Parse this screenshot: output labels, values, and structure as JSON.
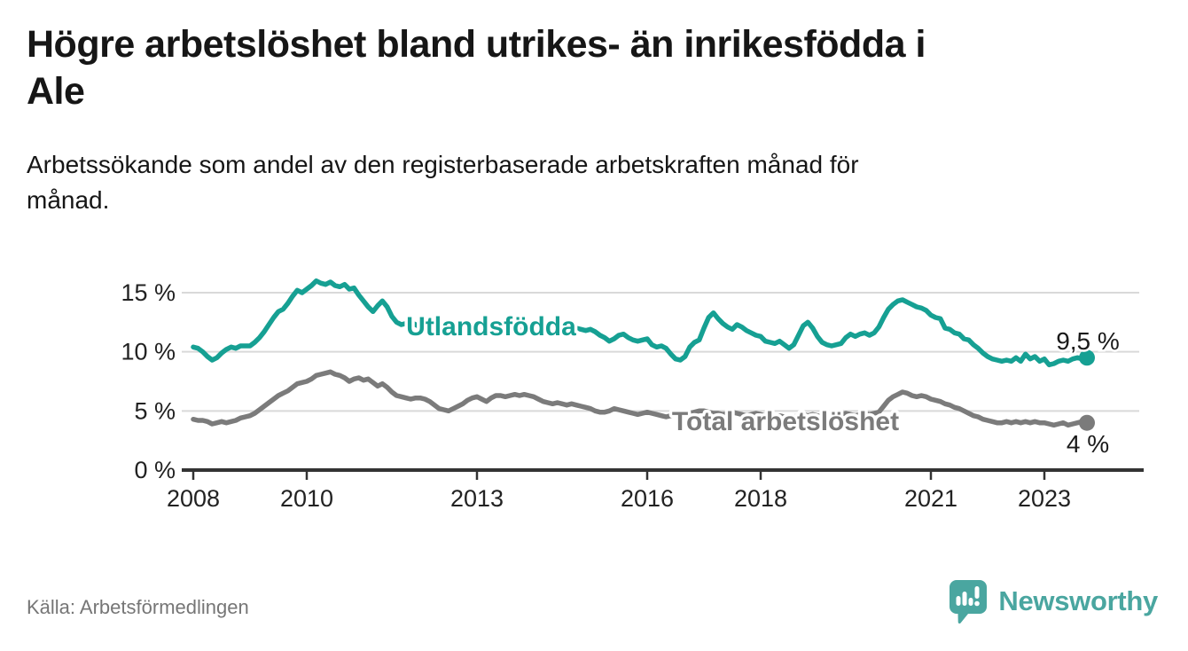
{
  "header": {
    "title": "Högre arbetslöshet bland utrikes- än inrikesfödda i\nAle",
    "subtitle": "Arbetssökande som andel av den registerbaserade arbetskraften månad för\nmånad."
  },
  "footer": {
    "source": "Källa: Arbetsförmedlingen",
    "brand": "Newsworthy"
  },
  "colors": {
    "series_foreign_born": "#16a093",
    "series_total": "#7b7b7b",
    "axis": "#333333",
    "gridline": "#d9d9d9",
    "tick_text": "#222222",
    "end_label_text": "#1a1a1a",
    "brand_teal": "#4aa6a0"
  },
  "chart_data": {
    "type": "line",
    "x_unit": "month",
    "x_start": "2008-01",
    "x_end": "2023-10",
    "x_ticks": [
      2008,
      2010,
      2013,
      2016,
      2018,
      2021,
      2023
    ],
    "y_ticks": [
      {
        "value": 0,
        "label": "0 %"
      },
      {
        "value": 5,
        "label": "5 %"
      },
      {
        "value": 10,
        "label": "10 %"
      },
      {
        "value": 15,
        "label": "15 %"
      }
    ],
    "ylim": [
      0,
      17.5
    ],
    "grid": "horizontal",
    "legend": "inline-labels",
    "series": [
      {
        "name": "Utlandsfödda",
        "color": "#16a093",
        "end_label": "9,5 %",
        "end_value": 9.5,
        "values": [
          10.4,
          10.3,
          10.0,
          9.6,
          9.3,
          9.5,
          9.9,
          10.2,
          10.4,
          10.3,
          10.5,
          10.5,
          10.5,
          10.8,
          11.2,
          11.7,
          12.3,
          12.9,
          13.4,
          13.6,
          14.1,
          14.7,
          15.2,
          15.0,
          15.3,
          15.6,
          16.0,
          15.8,
          15.7,
          15.9,
          15.6,
          15.5,
          15.7,
          15.3,
          15.4,
          14.8,
          14.3,
          13.8,
          13.4,
          13.9,
          14.3,
          13.8,
          13.0,
          12.5,
          12.3,
          12.4,
          12.5,
          12.3,
          12.1,
          11.9,
          11.7,
          11.5,
          11.4,
          11.5,
          11.6,
          11.5,
          11.4,
          11.5,
          11.6,
          11.7,
          11.8,
          11.7,
          11.6,
          11.7,
          11.8,
          11.9,
          12.0,
          11.9,
          11.8,
          11.9,
          12.0,
          11.9,
          12.0,
          11.9,
          11.8,
          11.9,
          12.0,
          11.9,
          11.9,
          11.8,
          11.9,
          12.0,
          11.9,
          11.8,
          11.9,
          11.7,
          11.4,
          11.2,
          10.9,
          11.1,
          11.4,
          11.5,
          11.2,
          11.0,
          10.9,
          11.0,
          11.1,
          10.6,
          10.4,
          10.5,
          10.3,
          9.8,
          9.4,
          9.3,
          9.6,
          10.4,
          10.8,
          11.0,
          12.0,
          12.9,
          13.3,
          12.8,
          12.4,
          12.1,
          11.9,
          12.3,
          12.1,
          11.8,
          11.6,
          11.4,
          11.3,
          10.9,
          10.8,
          10.7,
          10.9,
          10.6,
          10.3,
          10.6,
          11.4,
          12.2,
          12.5,
          12.0,
          11.3,
          10.8,
          10.6,
          10.5,
          10.6,
          10.7,
          11.2,
          11.5,
          11.3,
          11.5,
          11.6,
          11.4,
          11.6,
          12.1,
          12.9,
          13.6,
          14.0,
          14.3,
          14.4,
          14.2,
          14.0,
          13.8,
          13.7,
          13.5,
          13.1,
          12.9,
          12.8,
          12.0,
          11.9,
          11.6,
          11.5,
          11.1,
          11.0,
          10.6,
          10.3,
          9.9,
          9.6,
          9.4,
          9.3,
          9.2,
          9.3,
          9.2,
          9.5,
          9.2,
          9.8,
          9.4,
          9.6,
          9.2,
          9.4,
          8.9,
          9.0,
          9.2,
          9.3,
          9.2,
          9.4,
          9.5,
          9.4,
          9.5
        ]
      },
      {
        "name": "Total arbetslöshet",
        "color": "#7b7b7b",
        "end_label": "4 %",
        "end_value": 4.0,
        "values": [
          4.3,
          4.2,
          4.2,
          4.1,
          3.9,
          4.0,
          4.1,
          4.0,
          4.1,
          4.2,
          4.4,
          4.5,
          4.6,
          4.8,
          5.1,
          5.4,
          5.7,
          6.0,
          6.3,
          6.5,
          6.7,
          7.0,
          7.3,
          7.4,
          7.5,
          7.7,
          8.0,
          8.1,
          8.2,
          8.3,
          8.1,
          8.0,
          7.8,
          7.5,
          7.7,
          7.8,
          7.6,
          7.7,
          7.4,
          7.1,
          7.3,
          7.0,
          6.6,
          6.3,
          6.2,
          6.1,
          6.0,
          6.1,
          6.1,
          6.0,
          5.8,
          5.5,
          5.2,
          5.1,
          5.0,
          5.2,
          5.4,
          5.6,
          5.9,
          6.1,
          6.2,
          6.0,
          5.8,
          6.1,
          6.3,
          6.3,
          6.2,
          6.3,
          6.4,
          6.3,
          6.4,
          6.3,
          6.2,
          6.0,
          5.8,
          5.7,
          5.6,
          5.7,
          5.6,
          5.5,
          5.6,
          5.5,
          5.4,
          5.3,
          5.2,
          5.0,
          4.9,
          4.9,
          5.0,
          5.2,
          5.1,
          5.0,
          4.9,
          4.8,
          4.7,
          4.8,
          4.9,
          4.8,
          4.7,
          4.6,
          4.5,
          4.6,
          4.7,
          4.8,
          4.9,
          4.8,
          4.9,
          5.0,
          5.0,
          4.9,
          4.8,
          4.8,
          4.7,
          4.8,
          4.9,
          4.8,
          4.7,
          4.6,
          4.7,
          4.8,
          4.7,
          4.6,
          4.5,
          4.5,
          4.6,
          4.5,
          4.4,
          4.5,
          4.6,
          4.7,
          4.6,
          4.7,
          4.6,
          4.5,
          4.4,
          4.5,
          4.6,
          4.7,
          4.8,
          4.7,
          4.6,
          4.7,
          4.8,
          4.7,
          4.8,
          4.9,
          5.4,
          5.9,
          6.2,
          6.4,
          6.6,
          6.5,
          6.3,
          6.2,
          6.3,
          6.2,
          6.0,
          5.9,
          5.8,
          5.6,
          5.5,
          5.3,
          5.2,
          5.0,
          4.8,
          4.6,
          4.5,
          4.3,
          4.2,
          4.1,
          4.0,
          4.0,
          4.1,
          4.0,
          4.1,
          4.0,
          4.1,
          4.0,
          4.1,
          4.0,
          4.0,
          3.9,
          3.8,
          3.9,
          4.0,
          3.8,
          3.9,
          4.0,
          4.1,
          4.0
        ]
      }
    ]
  }
}
